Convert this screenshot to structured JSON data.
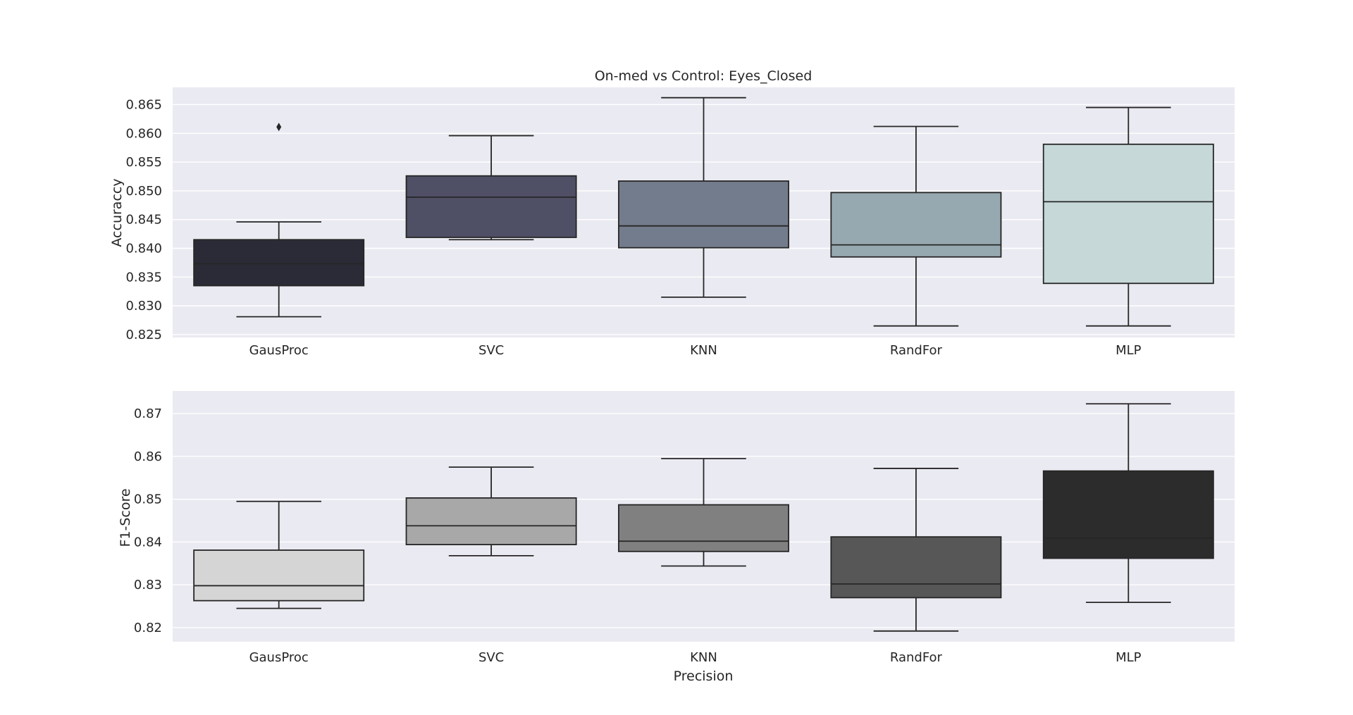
{
  "chart_data": [
    {
      "type": "box",
      "title": "On-med vs Control: Eyes_Closed",
      "xlabel": "",
      "ylabel": "Accuraccy",
      "ylim": [
        0.8245,
        0.868
      ],
      "yticks": [
        0.825,
        0.83,
        0.835,
        0.84,
        0.845,
        0.85,
        0.855,
        0.86,
        0.865
      ],
      "ytick_labels": [
        "0.825",
        "0.830",
        "0.835",
        "0.840",
        "0.845",
        "0.850",
        "0.855",
        "0.860",
        "0.865"
      ],
      "grid": true,
      "categories": [
        "GausProc",
        "SVC",
        "KNN",
        "RandFor",
        "MLP"
      ],
      "boxes": [
        {
          "whisker_low": 0.8281,
          "q1": 0.8335,
          "median": 0.8373,
          "q3": 0.8415,
          "whisker_high": 0.8446,
          "outliers": [
            0.8611
          ],
          "color": "#2b2b38"
        },
        {
          "whisker_low": 0.8415,
          "q1": 0.8419,
          "median": 0.8489,
          "q3": 0.8526,
          "whisker_high": 0.8596,
          "outliers": [],
          "color": "#4f4f66"
        },
        {
          "whisker_low": 0.8315,
          "q1": 0.8401,
          "median": 0.8439,
          "q3": 0.8517,
          "whisker_high": 0.8662,
          "outliers": [],
          "color": "#737c8c"
        },
        {
          "whisker_low": 0.8265,
          "q1": 0.8385,
          "median": 0.8406,
          "q3": 0.8497,
          "whisker_high": 0.8612,
          "outliers": [],
          "color": "#97a9b0"
        },
        {
          "whisker_low": 0.8265,
          "q1": 0.8339,
          "median": 0.8481,
          "q3": 0.8581,
          "whisker_high": 0.8645,
          "outliers": [],
          "color": "#c6d8d8"
        }
      ]
    },
    {
      "type": "box",
      "title": "",
      "xlabel": "Precision",
      "ylabel": "F1-Score",
      "ylim": [
        0.8167,
        0.8753
      ],
      "yticks": [
        0.82,
        0.83,
        0.84,
        0.85,
        0.86,
        0.87
      ],
      "ytick_labels": [
        "0.82",
        "0.83",
        "0.84",
        "0.85",
        "0.86",
        "0.87"
      ],
      "grid": true,
      "categories": [
        "GausProc",
        "SVC",
        "KNN",
        "RandFor",
        "MLP"
      ],
      "boxes": [
        {
          "whisker_low": 0.8245,
          "q1": 0.8263,
          "median": 0.8298,
          "q3": 0.8381,
          "whisker_high": 0.8495,
          "outliers": [],
          "color": "#d5d5d5"
        },
        {
          "whisker_low": 0.8368,
          "q1": 0.8394,
          "median": 0.8438,
          "q3": 0.8503,
          "whisker_high": 0.8575,
          "outliers": [],
          "color": "#a8a8a8"
        },
        {
          "whisker_low": 0.8344,
          "q1": 0.8378,
          "median": 0.8402,
          "q3": 0.8487,
          "whisker_high": 0.8595,
          "outliers": [],
          "color": "#808080"
        },
        {
          "whisker_low": 0.8192,
          "q1": 0.827,
          "median": 0.8302,
          "q3": 0.8412,
          "whisker_high": 0.8572,
          "outliers": [],
          "color": "#575757"
        },
        {
          "whisker_low": 0.8259,
          "q1": 0.8362,
          "median": 0.8409,
          "q3": 0.8566,
          "whisker_high": 0.8723,
          "outliers": [],
          "color": "#2c2c2c"
        }
      ]
    }
  ]
}
